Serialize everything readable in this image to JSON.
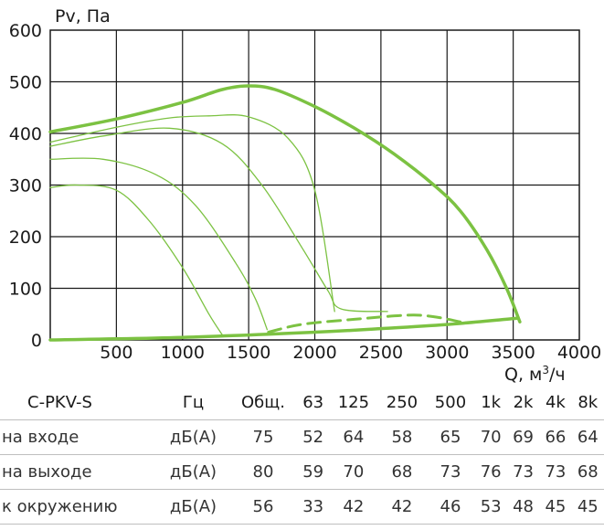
{
  "chart_data": {
    "type": "line",
    "xlabel": "Q, м³/ч",
    "ylabel": "Pv, Па",
    "xlim": [
      0,
      4000
    ],
    "ylim": [
      0,
      600
    ],
    "x_ticks": [
      "500",
      "1000",
      "1500",
      "2000",
      "2500",
      "3000",
      "3500",
      "4000"
    ],
    "y_ticks": [
      "0",
      "100",
      "200",
      "300",
      "400",
      "500",
      "600"
    ],
    "grid": true,
    "series": [
      {
        "style": "thick",
        "x": [
          0,
          500,
          1000,
          1300,
          1500,
          1700,
          2000,
          2300,
          2600,
          2900,
          3100,
          3300,
          3450,
          3550
        ],
        "y": [
          403,
          428,
          460,
          485,
          492,
          485,
          452,
          410,
          360,
          300,
          250,
          175,
          100,
          35
        ]
      },
      {
        "style": "thin",
        "x": [
          0,
          500,
          900,
          1200,
          1500,
          1800,
          2000,
          2150
        ],
        "y": [
          383,
          412,
          430,
          434,
          432,
          390,
          290,
          55
        ]
      },
      {
        "style": "thin",
        "x": [
          0,
          400,
          900,
          1300,
          1600,
          1900,
          2100,
          2200,
          2550
        ],
        "y": [
          375,
          395,
          410,
          380,
          300,
          180,
          95,
          60,
          55
        ]
      },
      {
        "style": "thin",
        "x": [
          0,
          400,
          800,
          1100,
          1400,
          1550,
          1640
        ],
        "y": [
          350,
          350,
          320,
          260,
          150,
          80,
          20
        ]
      },
      {
        "style": "thin",
        "x": [
          0,
          200,
          500,
          750,
          1000,
          1200,
          1300
        ],
        "y": [
          295,
          300,
          290,
          230,
          140,
          50,
          10
        ]
      },
      {
        "style": "thick",
        "x": [
          0,
          1000,
          2000,
          2500,
          3000,
          3530
        ],
        "y": [
          0,
          5,
          15,
          22,
          30,
          42
        ]
      },
      {
        "style": "dashed",
        "x": [
          1650,
          1900,
          2300,
          2700,
          2900,
          3100
        ],
        "y": [
          15,
          30,
          40,
          48,
          45,
          35
        ]
      }
    ]
  },
  "table": {
    "header": [
      "C-PKV-S",
      "Гц",
      "Общ.",
      "63",
      "125",
      "250",
      "500",
      "1k",
      "2k",
      "4k",
      "8k"
    ],
    "rows": [
      [
        "на входе",
        "дБ(А)",
        "75",
        "52",
        "64",
        "58",
        "65",
        "70",
        "69",
        "66",
        "64"
      ],
      [
        "на выходе",
        "дБ(А)",
        "80",
        "59",
        "70",
        "68",
        "73",
        "76",
        "73",
        "73",
        "68"
      ],
      [
        "к окружению",
        "дБ(А)",
        "56",
        "33",
        "42",
        "42",
        "46",
        "53",
        "48",
        "45",
        "45"
      ]
    ]
  }
}
